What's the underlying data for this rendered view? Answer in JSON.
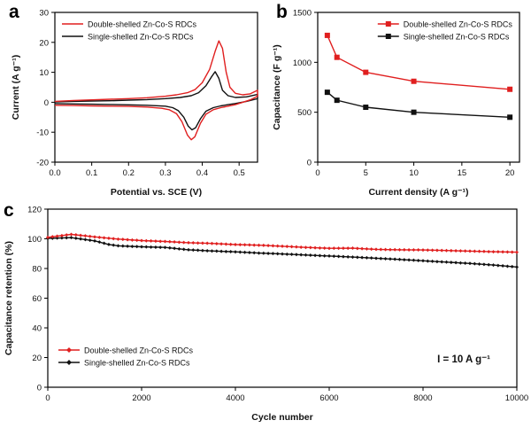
{
  "figure": {
    "background": "#ffffff"
  },
  "chart_data": [
    {
      "id": "a",
      "panel_label": "a",
      "type": "line",
      "title": "",
      "xlabel": "Potential vs. SCE (V)",
      "ylabel": "Current (A g⁻¹)",
      "xlim": [
        0,
        0.55
      ],
      "ylim": [
        -20,
        30
      ],
      "xticks": [
        0,
        0.1,
        0.2,
        0.3,
        0.4,
        0.5
      ],
      "xtick_labels": [
        "0.0",
        "0.1",
        "0.2",
        "0.3",
        "0.4",
        "0.5"
      ],
      "yticks": [
        -20,
        -10,
        0,
        10,
        20,
        30
      ],
      "ytick_labels": [
        "-20",
        "-10",
        "0",
        "10",
        "20",
        "30"
      ],
      "grid": false,
      "legend_pos": "top-left",
      "legend": [
        {
          "label": "Double-shelled Zn-Co-S RDCs",
          "color": "#e01f1f",
          "marker": "none"
        },
        {
          "label": "Single-shelled Zn-Co-S RDCs",
          "color": "#111111",
          "marker": "none"
        }
      ],
      "series": [
        {
          "name": "Single-shelled Zn-Co-S RDCs",
          "color": "#111111",
          "marker": "none",
          "points": [
            [
              0.0,
              0.1
            ],
            [
              0.05,
              0.3
            ],
            [
              0.1,
              0.4
            ],
            [
              0.15,
              0.5
            ],
            [
              0.2,
              0.7
            ],
            [
              0.25,
              0.9
            ],
            [
              0.3,
              1.2
            ],
            [
              0.34,
              1.6
            ],
            [
              0.37,
              2.2
            ],
            [
              0.39,
              3.2
            ],
            [
              0.41,
              5.5
            ],
            [
              0.425,
              8.5
            ],
            [
              0.435,
              10.2
            ],
            [
              0.445,
              8.0
            ],
            [
              0.455,
              4.0
            ],
            [
              0.47,
              2.2
            ],
            [
              0.49,
              1.6
            ],
            [
              0.52,
              1.8
            ],
            [
              0.55,
              2.6
            ],
            [
              0.55,
              1.2
            ],
            [
              0.52,
              0.3
            ],
            [
              0.49,
              -0.4
            ],
            [
              0.47,
              -0.8
            ],
            [
              0.45,
              -1.2
            ],
            [
              0.43,
              -1.8
            ],
            [
              0.41,
              -3.0
            ],
            [
              0.395,
              -5.5
            ],
            [
              0.382,
              -8.5
            ],
            [
              0.372,
              -9.2
            ],
            [
              0.362,
              -8.0
            ],
            [
              0.35,
              -5.0
            ],
            [
              0.335,
              -2.8
            ],
            [
              0.32,
              -1.8
            ],
            [
              0.3,
              -1.3
            ],
            [
              0.25,
              -1.0
            ],
            [
              0.2,
              -0.85
            ],
            [
              0.15,
              -0.75
            ],
            [
              0.1,
              -0.65
            ],
            [
              0.05,
              -0.55
            ],
            [
              0.0,
              -0.45
            ]
          ]
        },
        {
          "name": "Double-shelled Zn-Co-S RDCs",
          "color": "#e01f1f",
          "marker": "none",
          "points": [
            [
              0.0,
              0.3
            ],
            [
              0.05,
              0.6
            ],
            [
              0.1,
              0.8
            ],
            [
              0.15,
              1.0
            ],
            [
              0.2,
              1.2
            ],
            [
              0.25,
              1.5
            ],
            [
              0.3,
              2.0
            ],
            [
              0.33,
              2.5
            ],
            [
              0.36,
              3.2
            ],
            [
              0.38,
              4.2
            ],
            [
              0.4,
              6.5
            ],
            [
              0.42,
              11.0
            ],
            [
              0.435,
              17.0
            ],
            [
              0.445,
              20.5
            ],
            [
              0.455,
              18.0
            ],
            [
              0.465,
              10.0
            ],
            [
              0.475,
              5.0
            ],
            [
              0.49,
              3.0
            ],
            [
              0.51,
              2.5
            ],
            [
              0.53,
              2.8
            ],
            [
              0.55,
              4.0
            ],
            [
              0.55,
              2.0
            ],
            [
              0.53,
              0.8
            ],
            [
              0.51,
              0.0
            ],
            [
              0.49,
              -0.8
            ],
            [
              0.47,
              -1.3
            ],
            [
              0.45,
              -1.8
            ],
            [
              0.43,
              -2.5
            ],
            [
              0.41,
              -4.0
            ],
            [
              0.395,
              -7.0
            ],
            [
              0.38,
              -11.5
            ],
            [
              0.37,
              -12.5
            ],
            [
              0.36,
              -11.0
            ],
            [
              0.345,
              -6.5
            ],
            [
              0.33,
              -3.8
            ],
            [
              0.31,
              -2.5
            ],
            [
              0.29,
              -2.0
            ],
            [
              0.25,
              -1.6
            ],
            [
              0.2,
              -1.4
            ],
            [
              0.15,
              -1.3
            ],
            [
              0.1,
              -1.2
            ],
            [
              0.05,
              -1.1
            ],
            [
              0.0,
              -1.0
            ]
          ]
        }
      ]
    },
    {
      "id": "b",
      "panel_label": "b",
      "type": "line",
      "title": "",
      "xlabel": "Current density (A g⁻¹)",
      "ylabel": "Capacitance (F g⁻¹)",
      "xlim": [
        0,
        21
      ],
      "ylim": [
        0,
        1500
      ],
      "xticks": [
        0,
        5,
        10,
        15,
        20
      ],
      "xtick_labels": [
        "0",
        "5",
        "10",
        "15",
        "20"
      ],
      "yticks": [
        0,
        500,
        1000,
        1500
      ],
      "ytick_labels": [
        "0",
        "500",
        "1000",
        "1500"
      ],
      "grid": false,
      "legend_pos": "top-right",
      "legend": [
        {
          "label": "Double-shelled Zn-Co-S RDCs",
          "color": "#e01f1f",
          "marker": "square"
        },
        {
          "label": "Single-shelled Zn-Co-S RDCs",
          "color": "#111111",
          "marker": "square"
        }
      ],
      "series": [
        {
          "name": "Single-shelled Zn-Co-S RDCs",
          "color": "#111111",
          "marker": "square",
          "marker_size": 3,
          "points": [
            [
              1,
              700
            ],
            [
              2,
              620
            ],
            [
              5,
              550
            ],
            [
              10,
              500
            ],
            [
              20,
              450
            ]
          ]
        },
        {
          "name": "Double-shelled Zn-Co-S RDCs",
          "color": "#e01f1f",
          "marker": "square",
          "marker_size": 3,
          "points": [
            [
              1,
              1270
            ],
            [
              2,
              1050
            ],
            [
              5,
              900
            ],
            [
              10,
              810
            ],
            [
              20,
              730
            ]
          ]
        }
      ]
    },
    {
      "id": "c",
      "panel_label": "c",
      "type": "line",
      "title": "",
      "xlabel": "Cycle number",
      "ylabel": "Capacitance retention (%)",
      "xlim": [
        0,
        10000
      ],
      "ylim": [
        0,
        120
      ],
      "xticks": [
        0,
        2000,
        4000,
        6000,
        8000,
        10000
      ],
      "xtick_labels": [
        "0",
        "2000",
        "4000",
        "6000",
        "8000",
        "10000"
      ],
      "yticks": [
        0,
        20,
        40,
        60,
        80,
        100,
        120
      ],
      "ytick_labels": [
        "0",
        "20",
        "40",
        "60",
        "80",
        "100",
        "120"
      ],
      "grid": false,
      "legend_pos": "bottom-left",
      "annotation": "I = 10 A g⁻¹",
      "legend": [
        {
          "label": "Double-shelled Zn-Co-S RDCs",
          "color": "#e01f1f",
          "marker": "diamond"
        },
        {
          "label": "Single-shelled Zn-Co-S RDCs",
          "color": "#111111",
          "marker": "diamond"
        }
      ],
      "series": [
        {
          "name": "Single-shelled Zn-Co-S RDCs",
          "color": "#111111",
          "marker": "diamond",
          "marker_size": 2,
          "marker_step": 100,
          "points": [
            [
              0,
              100.3
            ],
            [
              500,
              100.8
            ],
            [
              1000,
              98.6
            ],
            [
              1300,
              96.2
            ],
            [
              1500,
              95.3
            ],
            [
              2000,
              94.6
            ],
            [
              2500,
              94.2
            ],
            [
              3000,
              92.6
            ],
            [
              3500,
              91.8
            ],
            [
              4000,
              91.2
            ],
            [
              4500,
              90.4
            ],
            [
              5000,
              89.8
            ],
            [
              5500,
              89.1
            ],
            [
              6000,
              88.4
            ],
            [
              6500,
              87.7
            ],
            [
              7000,
              86.9
            ],
            [
              7500,
              86.1
            ],
            [
              8000,
              85.2
            ],
            [
              8500,
              84.3
            ],
            [
              9000,
              83.4
            ],
            [
              9500,
              82.3
            ],
            [
              10000,
              81.0
            ]
          ]
        },
        {
          "name": "Double-shelled Zn-Co-S RDCs",
          "color": "#e01f1f",
          "marker": "diamond",
          "marker_size": 2,
          "marker_step": 100,
          "points": [
            [
              0,
              101.0
            ],
            [
              500,
              103.0
            ],
            [
              1000,
              101.3
            ],
            [
              1500,
              99.8
            ],
            [
              2000,
              98.8
            ],
            [
              2500,
              98.2
            ],
            [
              3000,
              97.4
            ],
            [
              3500,
              96.9
            ],
            [
              4000,
              96.1
            ],
            [
              4500,
              95.7
            ],
            [
              5000,
              95.0
            ],
            [
              5500,
              94.2
            ],
            [
              6000,
              93.6
            ],
            [
              6500,
              93.7
            ],
            [
              7000,
              92.9
            ],
            [
              7500,
              92.6
            ],
            [
              8000,
              92.5
            ],
            [
              8500,
              92.1
            ],
            [
              9000,
              91.7
            ],
            [
              9500,
              91.3
            ],
            [
              10000,
              91.0
            ]
          ]
        }
      ]
    }
  ]
}
